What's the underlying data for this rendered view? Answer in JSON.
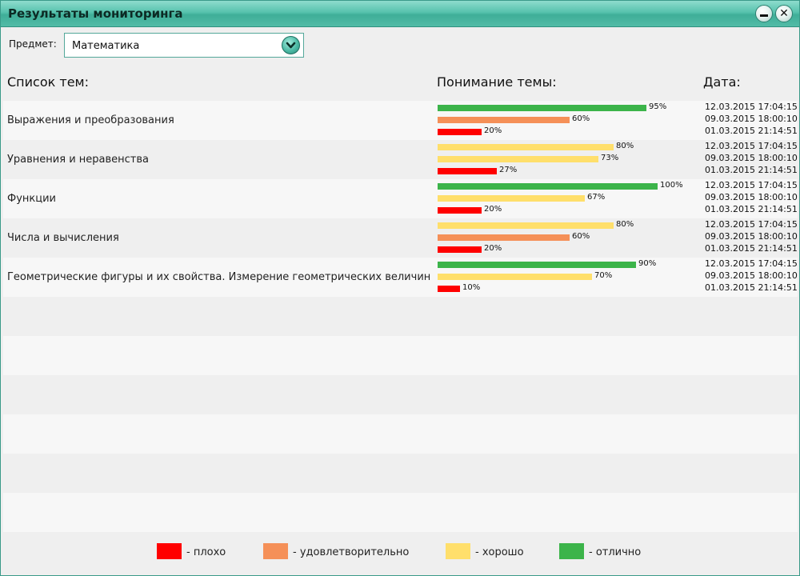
{
  "window": {
    "title": "Результаты мониторинга"
  },
  "subject": {
    "label": "Предмет:",
    "value": "Математика"
  },
  "headers": {
    "topics": "Список тем:",
    "understanding": "Понимание темы:",
    "date": "Дата:"
  },
  "colors": {
    "bad": "#ff0000",
    "satisfactory": "#f59058",
    "good": "#ffdf6b",
    "excellent": "#3cb44a"
  },
  "topics": [
    {
      "name": "Выражения и преобразования",
      "results": [
        {
          "percent": 95,
          "label": "95%",
          "level": "excellent",
          "date": "12.03.2015 17:04:15"
        },
        {
          "percent": 60,
          "label": "60%",
          "level": "satisfactory",
          "date": "09.03.2015 18:00:10"
        },
        {
          "percent": 20,
          "label": "20%",
          "level": "bad",
          "date": "01.03.2015 21:14:51"
        }
      ]
    },
    {
      "name": "Уравнения и неравенства",
      "results": [
        {
          "percent": 80,
          "label": "80%",
          "level": "good",
          "date": "12.03.2015 17:04:15"
        },
        {
          "percent": 73,
          "label": "73%",
          "level": "good",
          "date": "09.03.2015 18:00:10"
        },
        {
          "percent": 27,
          "label": "27%",
          "level": "bad",
          "date": "01.03.2015 21:14:51"
        }
      ]
    },
    {
      "name": "Функции",
      "results": [
        {
          "percent": 100,
          "label": "100%",
          "level": "excellent",
          "date": "12.03.2015 17:04:15"
        },
        {
          "percent": 67,
          "label": "67%",
          "level": "good",
          "date": "09.03.2015 18:00:10"
        },
        {
          "percent": 20,
          "label": "20%",
          "level": "bad",
          "date": "01.03.2015 21:14:51"
        }
      ]
    },
    {
      "name": "Числа и вычисления",
      "results": [
        {
          "percent": 80,
          "label": "80%",
          "level": "good",
          "date": "12.03.2015 17:04:15"
        },
        {
          "percent": 60,
          "label": "60%",
          "level": "satisfactory",
          "date": "09.03.2015 18:00:10"
        },
        {
          "percent": 20,
          "label": "20%",
          "level": "bad",
          "date": "01.03.2015 21:14:51"
        }
      ]
    },
    {
      "name": "Геометрические фигуры и их свойства. Измерение геометрических величин",
      "results": [
        {
          "percent": 90,
          "label": "90%",
          "level": "excellent",
          "date": "12.03.2015 17:04:15"
        },
        {
          "percent": 70,
          "label": "70%",
          "level": "good",
          "date": "09.03.2015 18:00:10"
        },
        {
          "percent": 10,
          "label": "10%",
          "level": "bad",
          "date": "01.03.2015 21:14:51"
        }
      ]
    }
  ],
  "legend": [
    {
      "level": "bad",
      "label": "- плохо"
    },
    {
      "level": "satisfactory",
      "label": "- удовлетворительно"
    },
    {
      "level": "good",
      "label": "- хорошо"
    },
    {
      "level": "excellent",
      "label": "- отлично"
    }
  ]
}
